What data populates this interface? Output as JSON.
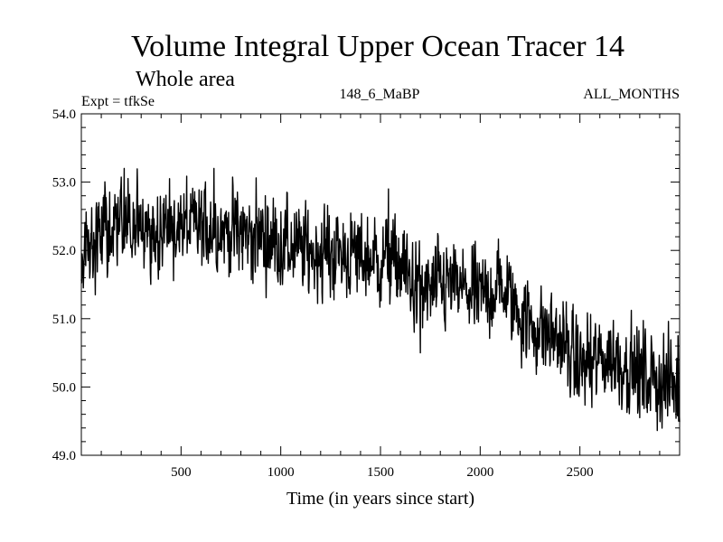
{
  "chart_data": {
    "type": "line",
    "title": "Volume Integral Upper Ocean Tracer 14",
    "subtitle": "Whole area",
    "experiment": "Expt = tfkSe",
    "run": "148_6_MaBP",
    "season": "ALL_MONTHS",
    "xlabel": "Time (in years since start)",
    "ylabel": "",
    "xlim": [
      0,
      3000
    ],
    "ylim": [
      49.0,
      54.0
    ],
    "xticks": [
      500,
      1000,
      1500,
      2000,
      2500
    ],
    "xtick_labels": [
      "500",
      "1000",
      "1500",
      "2000",
      "2500"
    ],
    "yticks": [
      49.0,
      50.0,
      51.0,
      52.0,
      53.0,
      54.0
    ],
    "ytick_labels": [
      "49.0",
      "50.0",
      "51.0",
      "52.0",
      "53.0",
      "54.0"
    ],
    "grid": false,
    "series": [
      {
        "name": "Tracer 14 volume integral",
        "trend_x": [
          0,
          100,
          250,
          400,
          650,
          900,
          1100,
          1300,
          1500,
          1600,
          1700,
          1850,
          2000,
          2100,
          2250,
          2400,
          2500,
          2650,
          2800,
          3000
        ],
        "trend_y": [
          52.0,
          52.25,
          52.35,
          52.3,
          52.35,
          52.2,
          52.0,
          51.95,
          51.85,
          51.8,
          51.35,
          51.5,
          51.3,
          51.5,
          50.9,
          50.7,
          50.3,
          50.45,
          50.2,
          50.0
        ],
        "noise_amplitude": 0.42,
        "n_points": 1500,
        "notable_points": [
          {
            "x": 70,
            "y": 51.35
          },
          {
            "x": 215,
            "y": 53.2
          },
          {
            "x": 665,
            "y": 53.2
          },
          {
            "x": 1540,
            "y": 52.9
          },
          {
            "x": 1700,
            "y": 50.5
          },
          {
            "x": 2560,
            "y": 49.7
          },
          {
            "x": 2800,
            "y": 49.55
          },
          {
            "x": 2995,
            "y": 49.5
          }
        ]
      }
    ]
  }
}
